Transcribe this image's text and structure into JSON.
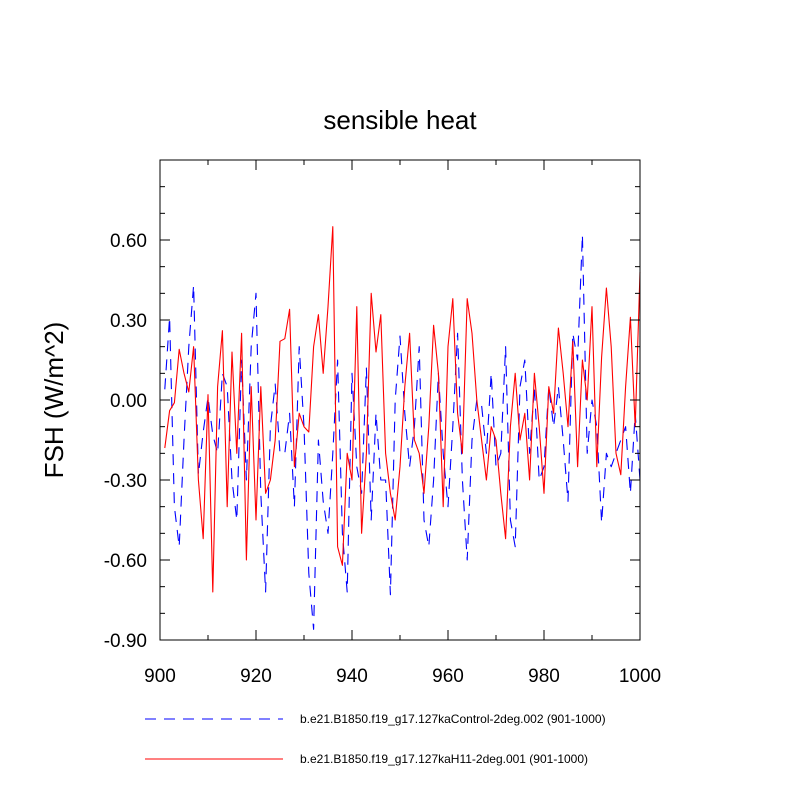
{
  "chart_data": {
    "type": "line",
    "title": "sensible heat",
    "xlabel": "",
    "ylabel": "FSH  (W/m^2)",
    "xlim": [
      900,
      1000
    ],
    "ylim": [
      -0.9,
      0.9
    ],
    "xticks": [
      900,
      920,
      940,
      960,
      980,
      1000
    ],
    "xtick_labels": [
      "900",
      "920",
      "940",
      "960",
      "980",
      "1000"
    ],
    "yticks": [
      -0.9,
      -0.6,
      -0.3,
      0.0,
      0.3,
      0.6
    ],
    "ytick_labels": [
      "-0.90",
      "-0.60",
      "-0.30",
      "0.00",
      "0.30",
      "0.60"
    ],
    "grid": false,
    "legend_position": "bottom",
    "x": [
      901,
      902,
      903,
      904,
      905,
      906,
      907,
      908,
      909,
      910,
      911,
      912,
      913,
      914,
      915,
      916,
      917,
      918,
      919,
      920,
      921,
      922,
      923,
      924,
      925,
      926,
      927,
      928,
      929,
      930,
      931,
      932,
      933,
      934,
      935,
      936,
      937,
      938,
      939,
      940,
      941,
      942,
      943,
      944,
      945,
      946,
      947,
      948,
      949,
      950,
      951,
      952,
      953,
      954,
      955,
      956,
      957,
      958,
      959,
      960,
      961,
      962,
      963,
      964,
      965,
      966,
      967,
      968,
      969,
      970,
      971,
      972,
      973,
      974,
      975,
      976,
      977,
      978,
      979,
      980,
      981,
      982,
      983,
      984,
      985,
      986,
      987,
      988,
      989,
      990,
      991,
      992,
      993,
      994,
      995,
      996,
      997,
      998,
      999,
      1000
    ],
    "series": [
      {
        "name": "b.e21.B1850.f19_g17.127kaControl-2deg.002 (901-1000)",
        "color": "#0000ff",
        "dash": "dashed",
        "values": [
          0.04,
          0.31,
          -0.4,
          -0.55,
          -0.15,
          0.2,
          0.43,
          -0.28,
          -0.12,
          0.01,
          -0.13,
          -0.2,
          0.1,
          0.05,
          -0.3,
          -0.45,
          0.15,
          -0.3,
          0.2,
          0.4,
          -0.35,
          -0.72,
          -0.1,
          0.06,
          -0.2,
          -0.2,
          -0.05,
          -0.4,
          0.2,
          -0.1,
          -0.65,
          -0.86,
          -0.15,
          -0.38,
          -0.5,
          -0.2,
          0.15,
          -0.5,
          -0.72,
          0.1,
          -0.25,
          -0.35,
          0.12,
          -0.45,
          -0.05,
          -0.3,
          -0.3,
          -0.73,
          0.0,
          0.24,
          -0.05,
          -0.25,
          -0.1,
          0.2,
          -0.45,
          -0.55,
          -0.3,
          0.1,
          -0.2,
          -0.4,
          -0.1,
          0.25,
          -0.3,
          -0.6,
          -0.15,
          0.0,
          -0.02,
          -0.2,
          0.1,
          -0.25,
          -0.2,
          0.2,
          -0.45,
          -0.55,
          0.05,
          0.15,
          -0.2,
          0.05,
          -0.3,
          -0.25,
          0.05,
          -0.1,
          0.05,
          -0.15,
          -0.38,
          0.25,
          0.15,
          0.62,
          -0.2,
          0.0,
          -0.1,
          -0.46,
          -0.2,
          -0.25,
          -0.2,
          -0.15,
          -0.1,
          -0.35,
          -0.05,
          -0.3
        ]
      },
      {
        "name": "b.e21.B1850.f19_g17.127kaH11-2deg.001 (901-1000)",
        "color": "#ff0000",
        "dash": "solid",
        "values": [
          -0.18,
          -0.04,
          -0.01,
          0.19,
          0.1,
          0.03,
          0.2,
          -0.3,
          -0.52,
          0.02,
          -0.72,
          0.05,
          0.26,
          -0.4,
          0.18,
          -0.2,
          0.25,
          -0.6,
          0.05,
          -0.45,
          0.05,
          -0.35,
          -0.3,
          -0.15,
          0.22,
          0.23,
          0.34,
          -0.25,
          -0.05,
          -0.1,
          -0.12,
          0.2,
          0.32,
          0.1,
          0.35,
          0.65,
          -0.55,
          -0.62,
          -0.2,
          -0.3,
          0.35,
          -0.5,
          -0.2,
          0.4,
          0.18,
          0.32,
          -0.2,
          -0.35,
          -0.45,
          -0.25,
          0.05,
          0.25,
          -0.15,
          -0.2,
          -0.35,
          -0.1,
          0.28,
          0.1,
          -0.4,
          0.2,
          0.38,
          -0.05,
          -0.2,
          0.38,
          0.25,
          0.0,
          -0.15,
          -0.3,
          -0.1,
          -0.15,
          -0.35,
          -0.52,
          -0.1,
          0.1,
          -0.15,
          -0.05,
          -0.3,
          0.1,
          -0.1,
          -0.35,
          0.05,
          -0.05,
          0.27,
          0.1,
          -0.1,
          0.22,
          -0.25,
          0.15,
          0.0,
          0.35,
          -0.25,
          0.16,
          0.42,
          0.2,
          -0.2,
          -0.28,
          0.05,
          0.31,
          -0.1,
          0.48
        ]
      }
    ]
  }
}
